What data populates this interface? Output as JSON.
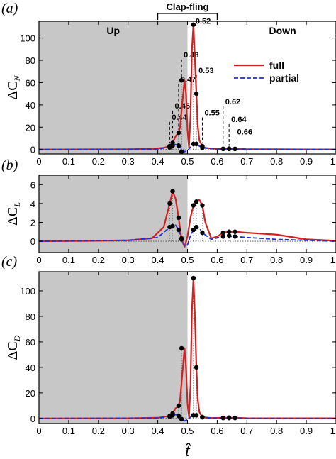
{
  "figure": {
    "top_bracket_label": "Clap-fling",
    "phase_up": "Up",
    "phase_down": "Down",
    "xlabel": "t̂",
    "shade_range": [
      0,
      0.5
    ],
    "bracket_range": [
      0.4,
      0.6
    ]
  },
  "chart_data": [
    {
      "type": "line",
      "panel_label": "(a)",
      "ylabel_main": "ΔC",
      "ylabel_sub": "N",
      "xlim": [
        0,
        1
      ],
      "ylim": [
        -4,
        115
      ],
      "yticks": [
        0,
        20,
        40,
        60,
        80,
        100
      ],
      "xticks": [
        0,
        0.1,
        0.2,
        0.3,
        0.4,
        0.5,
        0.6,
        0.7,
        0.8,
        0.9,
        1
      ],
      "legend": [
        "full",
        "partial"
      ],
      "legend_position": "upper-right",
      "series": [
        {
          "name": "full",
          "color": "#d42020",
          "x": [
            0,
            0.3,
            0.38,
            0.42,
            0.44,
            0.45,
            0.46,
            0.47,
            0.475,
            0.48,
            0.49,
            0.495,
            0.5,
            0.505,
            0.51,
            0.515,
            0.52,
            0.525,
            0.53,
            0.535,
            0.54,
            0.55,
            0.56,
            0.58,
            0.6,
            0.62,
            0.64,
            0.66,
            0.7,
            0.8,
            0.9,
            1.0
          ],
          "y": [
            0,
            0.2,
            0.6,
            1.5,
            3,
            6,
            12,
            15,
            20,
            35,
            62,
            50,
            18,
            2,
            30,
            90,
            112,
            80,
            50,
            20,
            8,
            3,
            1.5,
            0.8,
            0.5,
            0.6,
            0.8,
            0.6,
            0.3,
            0.2,
            0.1,
            0.1
          ]
        },
        {
          "name": "partial",
          "color": "#1f2fd9",
          "x": [
            0,
            0.3,
            0.4,
            0.44,
            0.45,
            0.46,
            0.47,
            0.48,
            0.49,
            0.5,
            0.51,
            0.52,
            0.53,
            0.54,
            0.55,
            0.6,
            0.62,
            0.66,
            0.7,
            0.8,
            1.0
          ],
          "y": [
            0,
            0.1,
            0.5,
            2,
            3.5,
            4.5,
            3.5,
            1,
            -2,
            -1,
            2,
            5,
            5,
            3,
            1.5,
            0.4,
            0.5,
            0.5,
            0.2,
            0.1,
            0
          ]
        }
      ],
      "markers": {
        "x": [
          0.44,
          0.45,
          0.47,
          0.48,
          0.52,
          0.53,
          0.55,
          0.62,
          0.64,
          0.66
        ],
        "y_full": [
          3,
          6,
          15,
          62,
          112,
          50,
          3,
          0.6,
          0.8,
          0.6
        ],
        "y_partial": [
          2,
          3.5,
          3.5,
          -2,
          5,
          5,
          1.5,
          0.5,
          0.5,
          0.5
        ]
      },
      "annotations": [
        {
          "text": "0.44",
          "x": 0.44,
          "y_text": 26
        },
        {
          "text": "0.45",
          "x": 0.45,
          "y_text": 36
        },
        {
          "text": "0.47",
          "x": 0.47,
          "y_text": 60
        },
        {
          "text": "0.48",
          "x": 0.48,
          "y_text": 82
        },
        {
          "text": "0.52",
          "x": 0.52,
          "y_text": 112
        },
        {
          "text": "0.53",
          "x": 0.53,
          "y_text": 68
        },
        {
          "text": "0.55",
          "x": 0.55,
          "y_text": 30
        },
        {
          "text": "0.62",
          "x": 0.62,
          "y_text": 40
        },
        {
          "text": "0.64",
          "x": 0.64,
          "y_text": 24
        },
        {
          "text": "0.66",
          "x": 0.66,
          "y_text": 13
        }
      ]
    },
    {
      "type": "line",
      "panel_label": "(b)",
      "ylabel_main": "ΔC",
      "ylabel_sub": "L",
      "xlim": [
        0,
        1
      ],
      "ylim": [
        -1.2,
        7
      ],
      "yticks": [
        0,
        2,
        4,
        6
      ],
      "xticks": [
        0,
        0.1,
        0.2,
        0.3,
        0.4,
        0.5,
        0.6,
        0.7,
        0.8,
        0.9,
        1
      ],
      "series": [
        {
          "name": "full",
          "color": "#d42020",
          "x": [
            0,
            0.2,
            0.3,
            0.38,
            0.42,
            0.44,
            0.45,
            0.46,
            0.47,
            0.48,
            0.49,
            0.5,
            0.51,
            0.52,
            0.53,
            0.54,
            0.55,
            0.56,
            0.58,
            0.6,
            0.62,
            0.64,
            0.66,
            0.7,
            0.8,
            0.9,
            1.0
          ],
          "y": [
            0,
            0.05,
            0.1,
            0.3,
            1.5,
            4,
            5.3,
            4.5,
            2.5,
            0.2,
            -0.6,
            0.5,
            2.5,
            3.8,
            4.2,
            4.4,
            3.8,
            2,
            0.3,
            0.5,
            0.9,
            1,
            1,
            0.9,
            0.7,
            0.2,
            0.05
          ]
        },
        {
          "name": "partial",
          "color": "#1f2fd9",
          "x": [
            0,
            0.3,
            0.4,
            0.43,
            0.45,
            0.46,
            0.47,
            0.48,
            0.49,
            0.5,
            0.51,
            0.52,
            0.53,
            0.54,
            0.55,
            0.58,
            0.62,
            0.66,
            0.7,
            0.8,
            1.0
          ],
          "y": [
            0,
            0.1,
            0.4,
            1.2,
            1.6,
            1.7,
            1.2,
            0.3,
            -0.5,
            -0.4,
            0.6,
            1.2,
            1.5,
            1.4,
            0.9,
            0.2,
            0.5,
            0.5,
            0.4,
            0.2,
            0
          ]
        }
      ],
      "markers": {
        "x": [
          0.44,
          0.45,
          0.47,
          0.48,
          0.52,
          0.53,
          0.55,
          0.62,
          0.64,
          0.66
        ],
        "y_full": [
          4,
          5.3,
          2.5,
          0.2,
          3.8,
          4.2,
          3.8,
          0.9,
          1,
          1
        ],
        "y_partial": [
          1.5,
          1.6,
          1.2,
          0.3,
          1.2,
          1.5,
          0.9,
          0.5,
          0.6,
          0.5
        ]
      }
    },
    {
      "type": "line",
      "panel_label": "(c)",
      "ylabel_main": "ΔC",
      "ylabel_sub": "D",
      "xlim": [
        0,
        1
      ],
      "ylim": [
        -4,
        115
      ],
      "yticks": [
        0,
        20,
        40,
        60,
        80,
        100
      ],
      "xticks": [
        0,
        0.1,
        0.2,
        0.3,
        0.4,
        0.5,
        0.6,
        0.7,
        0.8,
        0.9,
        1
      ],
      "series": [
        {
          "name": "full",
          "color": "#d42020",
          "x": [
            0,
            0.3,
            0.4,
            0.44,
            0.45,
            0.46,
            0.47,
            0.475,
            0.48,
            0.49,
            0.495,
            0.5,
            0.505,
            0.51,
            0.515,
            0.52,
            0.525,
            0.53,
            0.535,
            0.54,
            0.55,
            0.58,
            0.62,
            0.66,
            0.7,
            0.8,
            1.0
          ],
          "y": [
            0,
            0.1,
            0.5,
            2,
            4,
            8,
            10,
            14,
            28,
            55,
            40,
            12,
            1,
            25,
            85,
            110,
            80,
            40,
            14,
            5,
            1,
            0.3,
            0.5,
            0.5,
            0.2,
            0.1,
            0.1
          ]
        },
        {
          "name": "partial",
          "color": "#1f2fd9",
          "x": [
            0,
            0.4,
            0.44,
            0.45,
            0.46,
            0.47,
            0.48,
            0.49,
            0.5,
            0.51,
            0.52,
            0.53,
            0.54,
            0.56,
            0.6,
            0.66,
            0.7,
            1.0
          ],
          "y": [
            0,
            0.3,
            1.5,
            2.5,
            3,
            2,
            -0.5,
            -2,
            -1,
            1,
            2.5,
            2.5,
            1.5,
            0.5,
            0.2,
            0.3,
            0.1,
            0
          ]
        }
      ],
      "markers": {
        "x": [
          0.44,
          0.45,
          0.47,
          0.48,
          0.52,
          0.53,
          0.55,
          0.62,
          0.64,
          0.66
        ],
        "y_full": [
          2,
          4,
          10,
          55,
          110,
          40,
          1,
          0.5,
          0.6,
          0.5
        ],
        "y_partial": [
          1.5,
          2.5,
          2,
          -0.5,
          2.5,
          2.5,
          1,
          0.3,
          0.3,
          0.3
        ]
      }
    }
  ]
}
